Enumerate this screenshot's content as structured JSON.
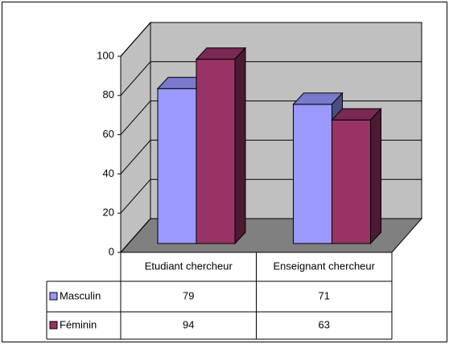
{
  "chart_data": {
    "type": "bar3d",
    "categories": [
      "Etudiant chercheur",
      "Enseignant chercheur"
    ],
    "series": [
      {
        "name": "Masculin",
        "color": "#9999ff",
        "values": [
          79,
          71
        ]
      },
      {
        "name": "Féminin",
        "color": "#993366",
        "values": [
          94,
          63
        ]
      }
    ],
    "ylim": [
      0,
      100
    ],
    "yticks": [
      0,
      20,
      40,
      60,
      80,
      100
    ],
    "grid": true
  }
}
